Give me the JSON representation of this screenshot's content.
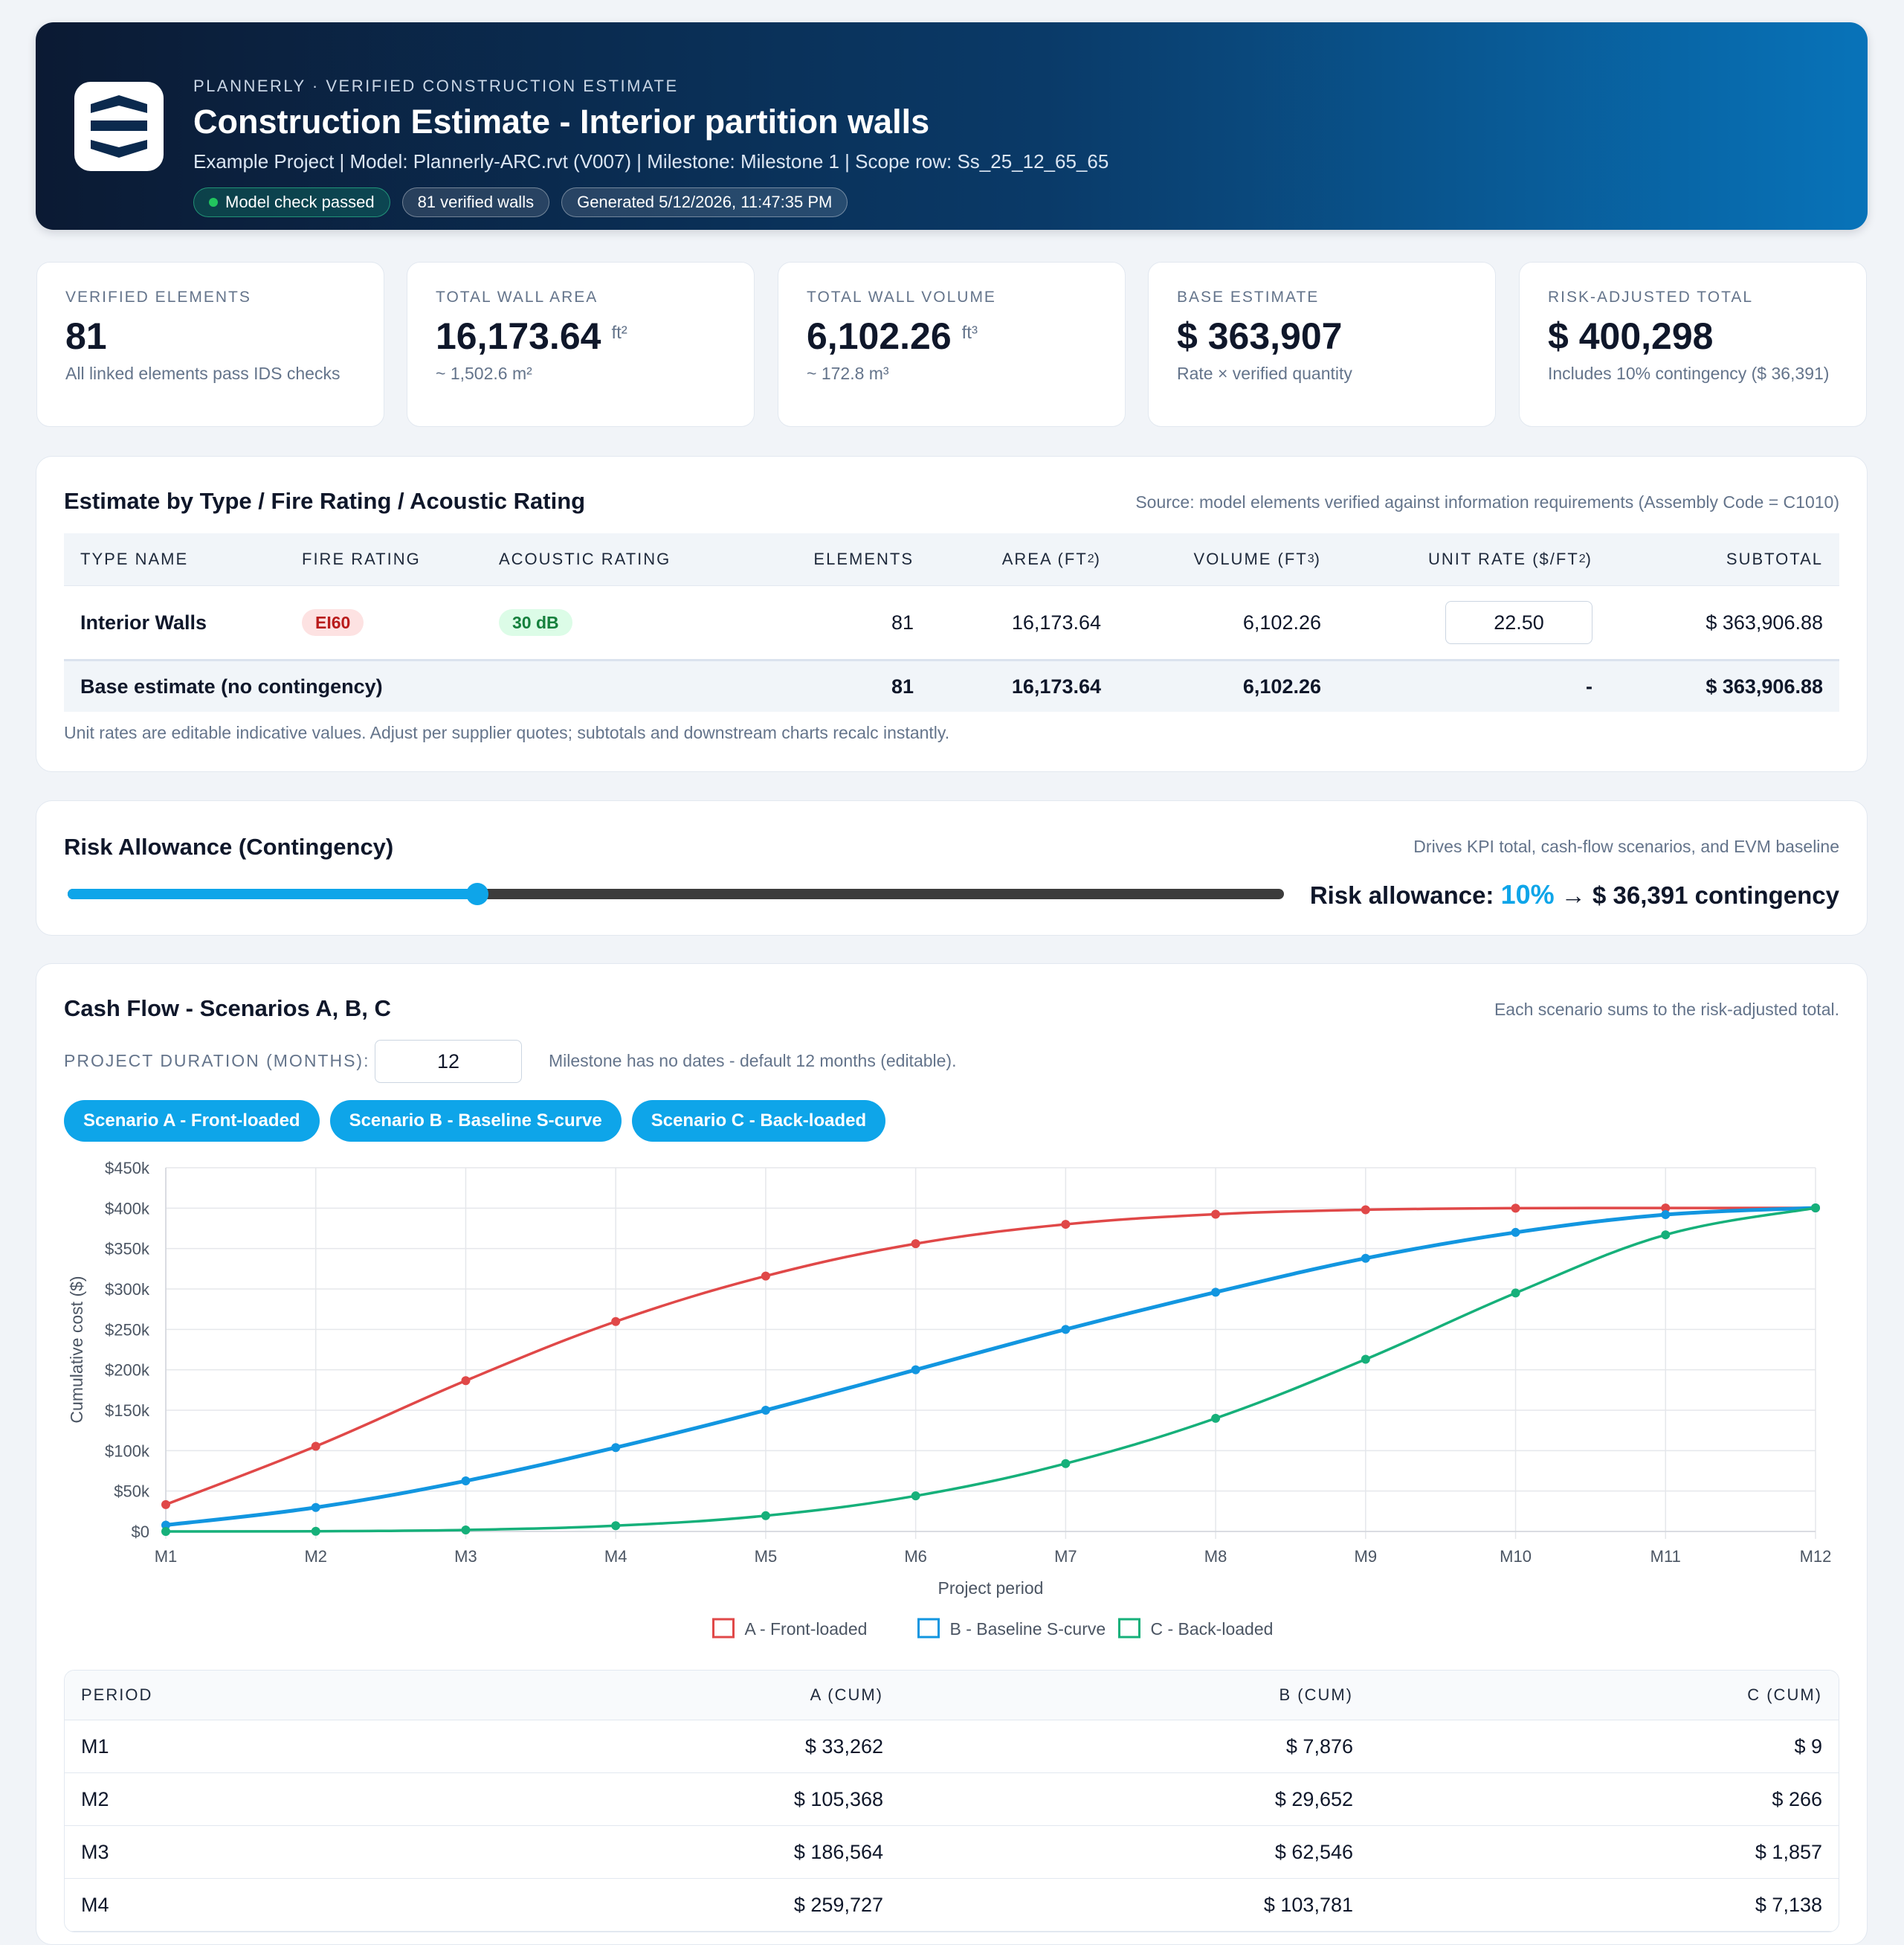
{
  "header": {
    "kicker": "PLANNERLY · VERIFIED CONSTRUCTION ESTIMATE",
    "title": "Construction Estimate - Interior partition walls",
    "subtitle": "Example Project | Model: Plannerly-ARC.rvt (V007) | Milestone: Milestone 1 | Scope row: Ss_25_12_65_65",
    "badges": [
      "Model check passed",
      "81 verified walls",
      "Generated 5/12/2026, 11:47:35 PM"
    ]
  },
  "kpis": [
    {
      "label": "VERIFIED ELEMENTS",
      "value": "81",
      "unit": "",
      "note": "All linked elements pass IDS checks"
    },
    {
      "label": "TOTAL WALL AREA",
      "value": "16,173.64",
      "unit": "ft²",
      "note": "~ 1,502.6 m²"
    },
    {
      "label": "TOTAL WALL VOLUME",
      "value": "6,102.26",
      "unit": "ft³",
      "note": "~ 172.8 m³"
    },
    {
      "label": "BASE ESTIMATE",
      "value": "$ 363,907",
      "unit": "",
      "note": "Rate × verified quantity"
    },
    {
      "label": "RISK-ADJUSTED TOTAL",
      "value": "$ 400,298",
      "unit": "",
      "note": "Includes 10% contingency ($ 36,391)"
    }
  ],
  "estimate": {
    "title": "Estimate by Type / Fire Rating / Acoustic Rating",
    "source": "Source: model elements verified against information requirements (Assembly Code = C1010)",
    "columns": {
      "type_name": "TYPE NAME",
      "fire_rating": "FIRE RATING",
      "acoustic_rating": "ACOUSTIC RATING",
      "elements": "ELEMENTS",
      "area": "AREA (FT",
      "volume": "VOLUME (FT",
      "unit_rate": "UNIT RATE ($/FT",
      "subtotal": "SUBTOTAL",
      "sup2": "2",
      "sup3": "3",
      "close": ")"
    },
    "row": {
      "type_name": "Interior Walls",
      "fire_rating": "EI60",
      "acoustic_rating": "30 dB",
      "elements": "81",
      "area": "16,173.64",
      "volume": "6,102.26",
      "unit_rate": "22.50",
      "subtotal": "$ 363,906.88"
    },
    "total": {
      "label": "Base estimate (no contingency)",
      "elements": "81",
      "area": "16,173.64",
      "volume": "6,102.26",
      "unit_rate": "-",
      "subtotal": "$ 363,906.88"
    },
    "footnote": "Unit rates are editable indicative values. Adjust per supplier quotes; subtotals and downstream charts recalc instantly."
  },
  "risk": {
    "title": "Risk Allowance (Contingency)",
    "note": "Drives KPI total, cash-flow scenarios, and EVM baseline",
    "label": "Risk allowance:",
    "percent_text": "10%",
    "arrow": "→",
    "contingency_text": "$ 36,391 contingency",
    "slider_fraction": 0.337
  },
  "cashflow": {
    "title": "Cash Flow - Scenarios A, B, C",
    "note": "Each scenario sums to the risk-adjusted total.",
    "duration_label": "PROJECT DURATION (MONTHS):",
    "duration_value": "12",
    "duration_note": "Milestone has no dates - default 12 months (editable).",
    "tabs": [
      "Scenario A - Front-loaded",
      "Scenario B - Baseline S-curve",
      "Scenario C - Back-loaded"
    ],
    "table": {
      "headers": [
        "PERIOD",
        "A (CUM)",
        "B (CUM)",
        "C (CUM)"
      ],
      "rows": [
        [
          "M1",
          "$ 33,262",
          "$ 7,876",
          "$ 9"
        ],
        [
          "M2",
          "$ 105,368",
          "$ 29,652",
          "$ 266"
        ],
        [
          "M3",
          "$ 186,564",
          "$ 62,546",
          "$ 1,857"
        ],
        [
          "M4",
          "$ 259,727",
          "$ 103,781",
          "$ 7,138"
        ]
      ]
    }
  },
  "chart_data": {
    "type": "line",
    "title": "",
    "xlabel": "Project period",
    "ylabel": "Cumulative cost ($)",
    "x": [
      "M1",
      "M2",
      "M3",
      "M4",
      "M5",
      "M6",
      "M7",
      "M8",
      "M9",
      "M10",
      "M11",
      "M12"
    ],
    "ylim": [
      0,
      450000
    ],
    "yticks": [
      0,
      50000,
      100000,
      150000,
      200000,
      250000,
      300000,
      350000,
      400000,
      450000
    ],
    "ytick_labels": [
      "$0",
      "$50k",
      "$100k",
      "$150k",
      "$200k",
      "$250k",
      "$300k",
      "$350k",
      "$400k",
      "$450k"
    ],
    "grid": true,
    "legend": "bottom",
    "series": [
      {
        "name": "A - Front-loaded",
        "color": "#e04848",
        "values": [
          33262,
          105368,
          186564,
          259727,
          316000,
          356000,
          380000,
          392500,
          398000,
          400000,
          400200,
          400298
        ]
      },
      {
        "name": "B - Baseline S-curve",
        "color": "#1296e0",
        "values": [
          7876,
          29652,
          62546,
          103781,
          150000,
          200000,
          250000,
          296000,
          338000,
          370000,
          392000,
          400298
        ]
      },
      {
        "name": "C - Back-loaded",
        "color": "#16b07a",
        "values": [
          9,
          266,
          1857,
          7138,
          19500,
          44000,
          84000,
          140000,
          213000,
          295000,
          367000,
          400298
        ]
      }
    ]
  }
}
